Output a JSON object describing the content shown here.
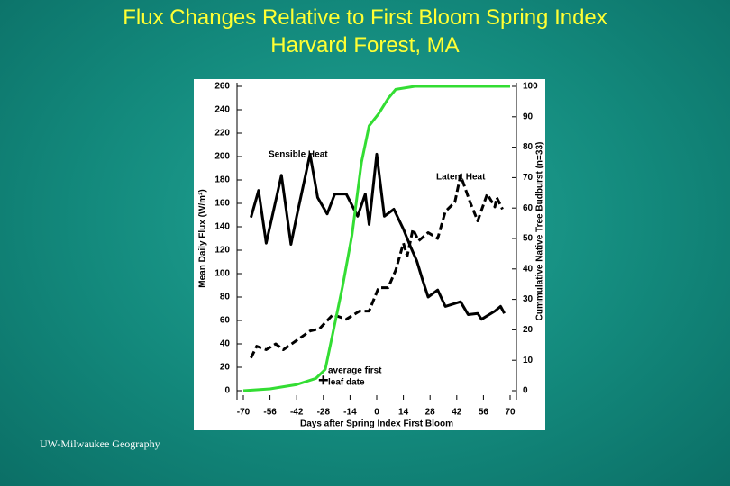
{
  "header": {
    "title": [
      "Flux Changes Relative to First Bloom Spring Index",
      "Harvard Forest, MA"
    ]
  },
  "footer": "UW-Milwaukee Geography",
  "chart_data": {
    "type": "line",
    "xlabel": "Days after Spring Index First Bloom",
    "ylabel": "Mean Daily Flux (W/m²)",
    "y2label": "Cummulative Native Tree Budburst (n=33)",
    "xlim": [
      -70,
      70
    ],
    "xticks": [
      -70,
      -56,
      -42,
      -28,
      -14,
      0,
      14,
      28,
      42,
      56,
      70
    ],
    "ylim": [
      0,
      260
    ],
    "yticks": [
      0,
      20,
      40,
      60,
      80,
      100,
      120,
      140,
      160,
      180,
      200,
      220,
      240,
      260
    ],
    "y2lim": [
      0,
      100
    ],
    "y2ticks": [
      0,
      10,
      20,
      30,
      40,
      50,
      60,
      70,
      80,
      90,
      100
    ],
    "series": [
      {
        "name": "Sensible Heat",
        "color": "#000000",
        "dash": false,
        "x": [
          -66,
          -62,
          -58,
          -50,
          -45,
          -42,
          -35,
          -31,
          -26,
          -22,
          -16,
          -10,
          -6,
          -4,
          0,
          4,
          9,
          14,
          18,
          21,
          24,
          27,
          32,
          36,
          44,
          48,
          53,
          55,
          62,
          65,
          67
        ],
        "values": [
          148,
          171,
          126,
          184,
          125,
          149,
          202,
          165,
          151,
          168,
          168,
          149,
          168,
          142,
          202,
          149,
          155,
          138,
          122,
          111,
          95,
          80,
          86,
          72,
          76,
          65,
          66,
          61,
          68,
          72,
          66
        ]
      },
      {
        "name": "Latent Heat",
        "color": "#000000",
        "dash": true,
        "x": [
          -66,
          -63,
          -58,
          -53,
          -49,
          -42,
          -35,
          -30,
          -23,
          -16,
          -9,
          -4,
          1,
          6,
          10,
          14,
          16,
          19,
          22,
          27,
          32,
          36,
          41,
          44,
          49,
          53,
          58,
          62,
          63,
          66
        ],
        "values": [
          28,
          38,
          35,
          40,
          35,
          43,
          51,
          53,
          65,
          61,
          68,
          68,
          88,
          88,
          103,
          126,
          115,
          138,
          128,
          135,
          130,
          153,
          161,
          184,
          161,
          145,
          168,
          157,
          165,
          155
        ]
      },
      {
        "name": "Budburst",
        "color": "#33dd33",
        "dash": false,
        "axis": "y2",
        "x": [
          -70,
          -56,
          -42,
          -32,
          -27,
          -23,
          -18,
          -13,
          -8,
          -4,
          1,
          6,
          10,
          20,
          70
        ],
        "values": [
          0,
          0.6,
          2,
          4,
          7,
          19,
          34,
          51,
          75,
          87,
          91,
          96,
          99,
          100,
          100
        ]
      }
    ],
    "annotations": [
      "Sensible Heat",
      "Latent Heat",
      "average first",
      "leaf date"
    ],
    "marker": {
      "x": -28,
      "y": 9
    }
  }
}
